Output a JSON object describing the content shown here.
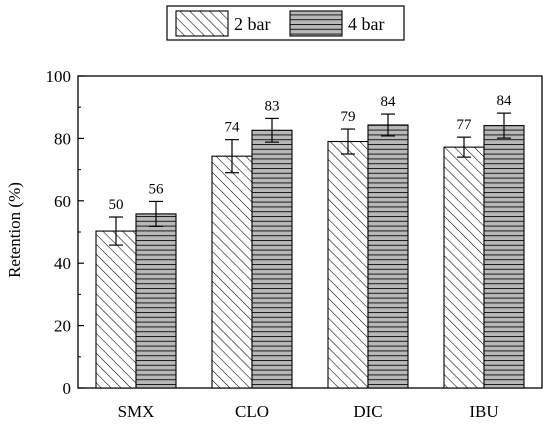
{
  "chart_data": {
    "type": "bar",
    "categories": [
      "SMX",
      "CLO",
      "DIC",
      "IBU"
    ],
    "series": [
      {
        "name": "2 bar",
        "values": [
          50.3,
          74.3,
          79.0,
          77.2
        ],
        "errors": [
          4.5,
          5.3,
          4.0,
          3.2
        ],
        "labels": [
          "50",
          "74",
          "79",
          "77"
        ],
        "pattern": "diagonal-hatch",
        "fill": "#ffffff"
      },
      {
        "name": "4 bar",
        "values": [
          55.8,
          82.6,
          84.3,
          84.1
        ],
        "errors": [
          4.0,
          3.8,
          3.5,
          4.0
        ],
        "labels": [
          "56",
          "83",
          "84",
          "84"
        ],
        "pattern": "horizontal-lines",
        "fill": "#b8b8b8"
      }
    ],
    "title": "",
    "xlabel": "",
    "ylabel": "Retention (%)",
    "ylim": [
      0,
      100
    ],
    "yticks": [
      "0",
      "20",
      "40",
      "60",
      "80",
      "100"
    ],
    "grid": false,
    "legend_position": "top-center"
  }
}
